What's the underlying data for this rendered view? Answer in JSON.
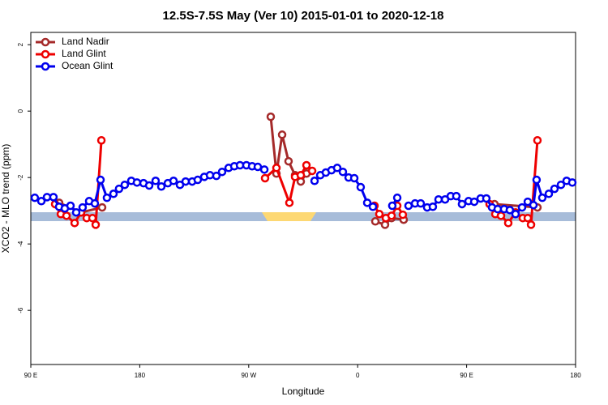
{
  "chart_data": {
    "type": "line",
    "title": "12.5S-7.5S May (Ver 10)   2015-01-01 to 2020-12-18",
    "x_label": "Longitude",
    "y_label": "XCO2 - MLO trend (ppm)",
    "xlim": [
      90,
      540
    ],
    "ylim": [
      -7.63,
      2.37
    ],
    "xticks": [
      {
        "value": 90,
        "label": "90 E"
      },
      180,
      {
        "value": 270,
        "label": "90 W"
      },
      {
        "value": 360,
        "label": "0"
      },
      {
        "value": 450,
        "label": "90 E"
      },
      {
        "value": 540,
        "label": "180"
      }
    ],
    "yticks": [
      2,
      0,
      -2,
      -4,
      -6
    ],
    "legend": "top-left",
    "series": [
      {
        "name": "Land Nadir",
        "color": "#a52a2a",
        "x": [
          113.4,
          131.5,
          148.9,
          null,
          288.2,
          292.9,
          297.6,
          302.9,
          308.3,
          313.0,
          317.7,
          null,
          374.6,
          382.6,
          388.0,
          398.0,
          null,
          473.0,
          508.5
        ],
        "values": [
          -2.76,
          -3.05,
          -2.9,
          null,
          -0.17,
          -1.88,
          -0.71,
          -1.51,
          -1.93,
          -2.12,
          -1.88,
          null,
          -3.32,
          -3.42,
          -3.22,
          -3.27,
          null,
          -2.8,
          -2.9
        ]
      },
      {
        "name": "Land Glint",
        "color": "#ee0000",
        "x": [
          110.1,
          114.8,
          119.5,
          126.2,
          131.5,
          136.2,
          140.9,
          143.6,
          148.3,
          null,
          283.5,
          292.9,
          303.6,
          308.3,
          313.0,
          317.7,
          322.4,
          null,
          373.9,
          377.9,
          383.3,
          388.0,
          392.7,
          397.3,
          null,
          469.0,
          473.7,
          478.4,
          484.4,
          490.4,
          496.4,
          500.5,
          503.2,
          508.5
        ],
        "values": [
          -2.8,
          -3.1,
          -3.15,
          -3.37,
          -3.05,
          -3.22,
          -3.22,
          -3.42,
          -0.88,
          null,
          -2.02,
          -1.71,
          -2.76,
          -1.98,
          -1.93,
          -1.63,
          -1.8,
          null,
          -2.85,
          -3.1,
          -3.22,
          -3.15,
          -2.85,
          -3.12,
          null,
          -2.8,
          -3.1,
          -3.15,
          -3.37,
          -3.05,
          -3.22,
          -3.22,
          -3.42,
          -0.88
        ]
      },
      {
        "name": "Ocean Glint",
        "color": "#0000ee",
        "x": [
          93.3,
          98.7,
          103.4,
          108.7,
          113.4,
          118.1,
          122.8,
          127.5,
          132.8,
          138.2,
          142.9,
          147.6,
          152.9,
          158.3,
          162.9,
          167.6,
          173.0,
          177.7,
          183.1,
          187.8,
          193.1,
          197.8,
          203.2,
          207.9,
          213.2,
          217.9,
          223.3,
          227.9,
          233.3,
          238.0,
          243.3,
          248.0,
          253.4,
          258.1,
          262.8,
          268.1,
          272.8,
          277.5,
          282.9,
          null,
          324.4,
          329.1,
          333.7,
          338.4,
          343.1,
          347.8,
          352.5,
          357.2,
          362.5,
          367.9,
          372.6,
          null,
          388.6,
          392.7,
          null,
          402.0,
          407.4,
          412.1,
          417.4,
          422.1,
          426.8,
          432.2,
          436.9,
          441.5,
          446.2,
          451.6,
          456.3,
          461.6,
          466.3,
          471.0,
          475.7,
          481.0,
          485.7,
          490.4,
          495.8,
          500.5,
          505.2,
          507.8,
          512.5,
          517.9,
          522.6,
          527.9,
          532.6,
          537.3
        ],
        "values": [
          -2.61,
          -2.71,
          -2.59,
          -2.59,
          -2.88,
          -2.93,
          -2.85,
          -3.05,
          -2.9,
          -2.71,
          -2.78,
          -2.07,
          -2.61,
          -2.49,
          -2.34,
          -2.22,
          -2.1,
          -2.15,
          -2.17,
          -2.24,
          -2.1,
          -2.27,
          -2.17,
          -2.1,
          -2.22,
          -2.12,
          -2.12,
          -2.07,
          -1.98,
          -1.93,
          -1.95,
          -1.83,
          -1.71,
          -1.66,
          -1.63,
          -1.63,
          -1.66,
          -1.68,
          -1.76,
          null,
          -2.1,
          -1.93,
          -1.85,
          -1.78,
          -1.71,
          -1.83,
          -2.0,
          -2.02,
          -2.29,
          -2.76,
          -2.88,
          null,
          -2.85,
          -2.61,
          null,
          -2.85,
          -2.78,
          -2.78,
          -2.9,
          -2.88,
          -2.66,
          -2.66,
          -2.56,
          -2.56,
          -2.8,
          -2.71,
          -2.73,
          -2.63,
          -2.63,
          -2.9,
          -2.95,
          -2.95,
          -2.98,
          -3.1,
          -2.9,
          -2.73,
          -2.83,
          -2.07,
          -2.61,
          -2.49,
          -2.34,
          -2.22,
          -2.1,
          -2.15
        ]
      }
    ]
  }
}
